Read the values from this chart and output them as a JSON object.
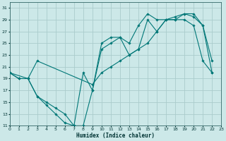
{
  "xlabel": "Humidex (Indice chaleur)",
  "background_color": "#cce8e8",
  "grid_color": "#aacccc",
  "line_color": "#007777",
  "xlim": [
    0,
    23
  ],
  "ylim": [
    11,
    32
  ],
  "yticks": [
    11,
    13,
    15,
    17,
    19,
    21,
    23,
    25,
    27,
    29,
    31
  ],
  "xticks": [
    0,
    1,
    2,
    3,
    4,
    5,
    6,
    7,
    8,
    9,
    10,
    11,
    12,
    13,
    14,
    15,
    16,
    17,
    18,
    19,
    20,
    21,
    22,
    23
  ],
  "line1_x": [
    0,
    1,
    2,
    3,
    4,
    5,
    6,
    7,
    8,
    9,
    10,
    11,
    12,
    13,
    14,
    15,
    16,
    17,
    18,
    19,
    20,
    21,
    22
  ],
  "line1_y": [
    20,
    19,
    19,
    16,
    14.5,
    13,
    11.5,
    11,
    20,
    17,
    25,
    26,
    26,
    25,
    28,
    30,
    29,
    29,
    29,
    29,
    28,
    22,
    20
  ],
  "line2_x": [
    0,
    1,
    2,
    3,
    9,
    10,
    11,
    12,
    13,
    14,
    15,
    16,
    17,
    18,
    19,
    20,
    21,
    22
  ],
  "line2_y": [
    20,
    19,
    19,
    22,
    18,
    20,
    21,
    22,
    23,
    24,
    25,
    27,
    29,
    29.5,
    30,
    29.5,
    28,
    20
  ],
  "line3_x": [
    0,
    2,
    3,
    4,
    5,
    6,
    7,
    8,
    9,
    10,
    11,
    12,
    13,
    14,
    15,
    16,
    17,
    18,
    19,
    20,
    21,
    22
  ],
  "line3_y": [
    20,
    19,
    16,
    15,
    14,
    13,
    11,
    11,
    17,
    24,
    25,
    26,
    23,
    24,
    29,
    27,
    29,
    29,
    30,
    30,
    28,
    22
  ]
}
